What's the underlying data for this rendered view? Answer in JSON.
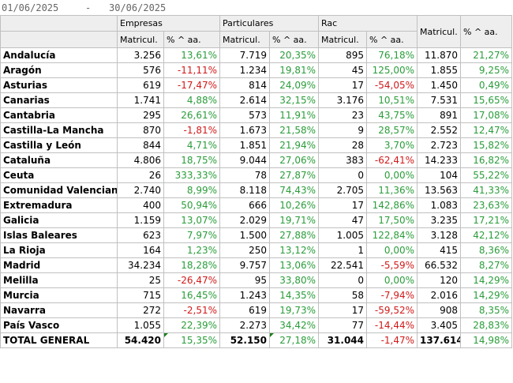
{
  "date_range": {
    "from": "01/06/2025",
    "separator": "-",
    "to": "30/06/2025"
  },
  "headers": {
    "groups": [
      "Empresas",
      "Particulares",
      "Rac"
    ],
    "sub": [
      "Matricul.",
      "% ^ aa."
    ],
    "total_matricul": "Matricul.",
    "total_pct": "% ^ aa."
  },
  "rows": [
    {
      "region": "Andalucía",
      "c": [
        "3.256",
        "13,61%",
        "7.719",
        "20,35%",
        "895",
        "76,18%",
        "11.870",
        "21,27%"
      ]
    },
    {
      "region": "Aragón",
      "c": [
        "576",
        "-11,11%",
        "1.234",
        "19,81%",
        "45",
        "125,00%",
        "1.855",
        "9,25%"
      ]
    },
    {
      "region": "Asturias",
      "c": [
        "619",
        "-17,47%",
        "814",
        "24,09%",
        "17",
        "-54,05%",
        "1.450",
        "0,49%"
      ]
    },
    {
      "region": "Canarias",
      "c": [
        "1.741",
        "4,88%",
        "2.614",
        "32,15%",
        "3.176",
        "10,51%",
        "7.531",
        "15,65%"
      ]
    },
    {
      "region": "Cantabria",
      "c": [
        "295",
        "26,61%",
        "573",
        "11,91%",
        "23",
        "43,75%",
        "891",
        "17,08%"
      ]
    },
    {
      "region": "Castilla-La Mancha",
      "c": [
        "870",
        "-1,81%",
        "1.673",
        "21,58%",
        "9",
        "28,57%",
        "2.552",
        "12,47%"
      ]
    },
    {
      "region": "Castilla y León",
      "c": [
        "844",
        "4,71%",
        "1.851",
        "21,94%",
        "28",
        "3,70%",
        "2.723",
        "15,82%"
      ]
    },
    {
      "region": "Cataluña",
      "c": [
        "4.806",
        "18,75%",
        "9.044",
        "27,06%",
        "383",
        "-62,41%",
        "14.233",
        "16,82%"
      ]
    },
    {
      "region": "Ceuta",
      "c": [
        "26",
        "333,33%",
        "78",
        "27,87%",
        "0",
        "0,00%",
        "104",
        "55,22%"
      ]
    },
    {
      "region": "Comunidad Valenciana",
      "c": [
        "2.740",
        "8,99%",
        "8.118",
        "74,43%",
        "2.705",
        "11,36%",
        "13.563",
        "41,33%"
      ]
    },
    {
      "region": "Extremadura",
      "c": [
        "400",
        "50,94%",
        "666",
        "10,26%",
        "17",
        "142,86%",
        "1.083",
        "23,63%"
      ]
    },
    {
      "region": "Galicia",
      "c": [
        "1.159",
        "13,07%",
        "2.029",
        "19,71%",
        "47",
        "17,50%",
        "3.235",
        "17,21%"
      ]
    },
    {
      "region": "Islas Baleares",
      "c": [
        "623",
        "7,97%",
        "1.500",
        "27,88%",
        "1.005",
        "122,84%",
        "3.128",
        "42,12%"
      ]
    },
    {
      "region": "La Rioja",
      "c": [
        "164",
        "1,23%",
        "250",
        "13,12%",
        "1",
        "0,00%",
        "415",
        "8,36%"
      ]
    },
    {
      "region": "Madrid",
      "c": [
        "34.234",
        "18,28%",
        "9.757",
        "13,06%",
        "22.541",
        "-5,59%",
        "66.532",
        "8,27%"
      ]
    },
    {
      "region": "Melilla",
      "c": [
        "25",
        "-26,47%",
        "95",
        "33,80%",
        "0",
        "0,00%",
        "120",
        "14,29%"
      ]
    },
    {
      "region": "Murcia",
      "c": [
        "715",
        "16,45%",
        "1.243",
        "14,35%",
        "58",
        "-7,94%",
        "2.016",
        "14,29%"
      ]
    },
    {
      "region": "Navarra",
      "c": [
        "272",
        "-2,51%",
        "619",
        "19,73%",
        "17",
        "-59,52%",
        "908",
        "8,35%"
      ]
    },
    {
      "region": "País Vasco",
      "c": [
        "1.055",
        "22,39%",
        "2.273",
        "34,42%",
        "77",
        "-14,44%",
        "3.405",
        "28,83%"
      ]
    },
    {
      "region": "TOTAL GENERAL",
      "c": [
        "54.420",
        "15,35%",
        "52.150",
        "27,18%",
        "31.044",
        "-1,47%",
        "137.614",
        "14,98%"
      ]
    }
  ]
}
